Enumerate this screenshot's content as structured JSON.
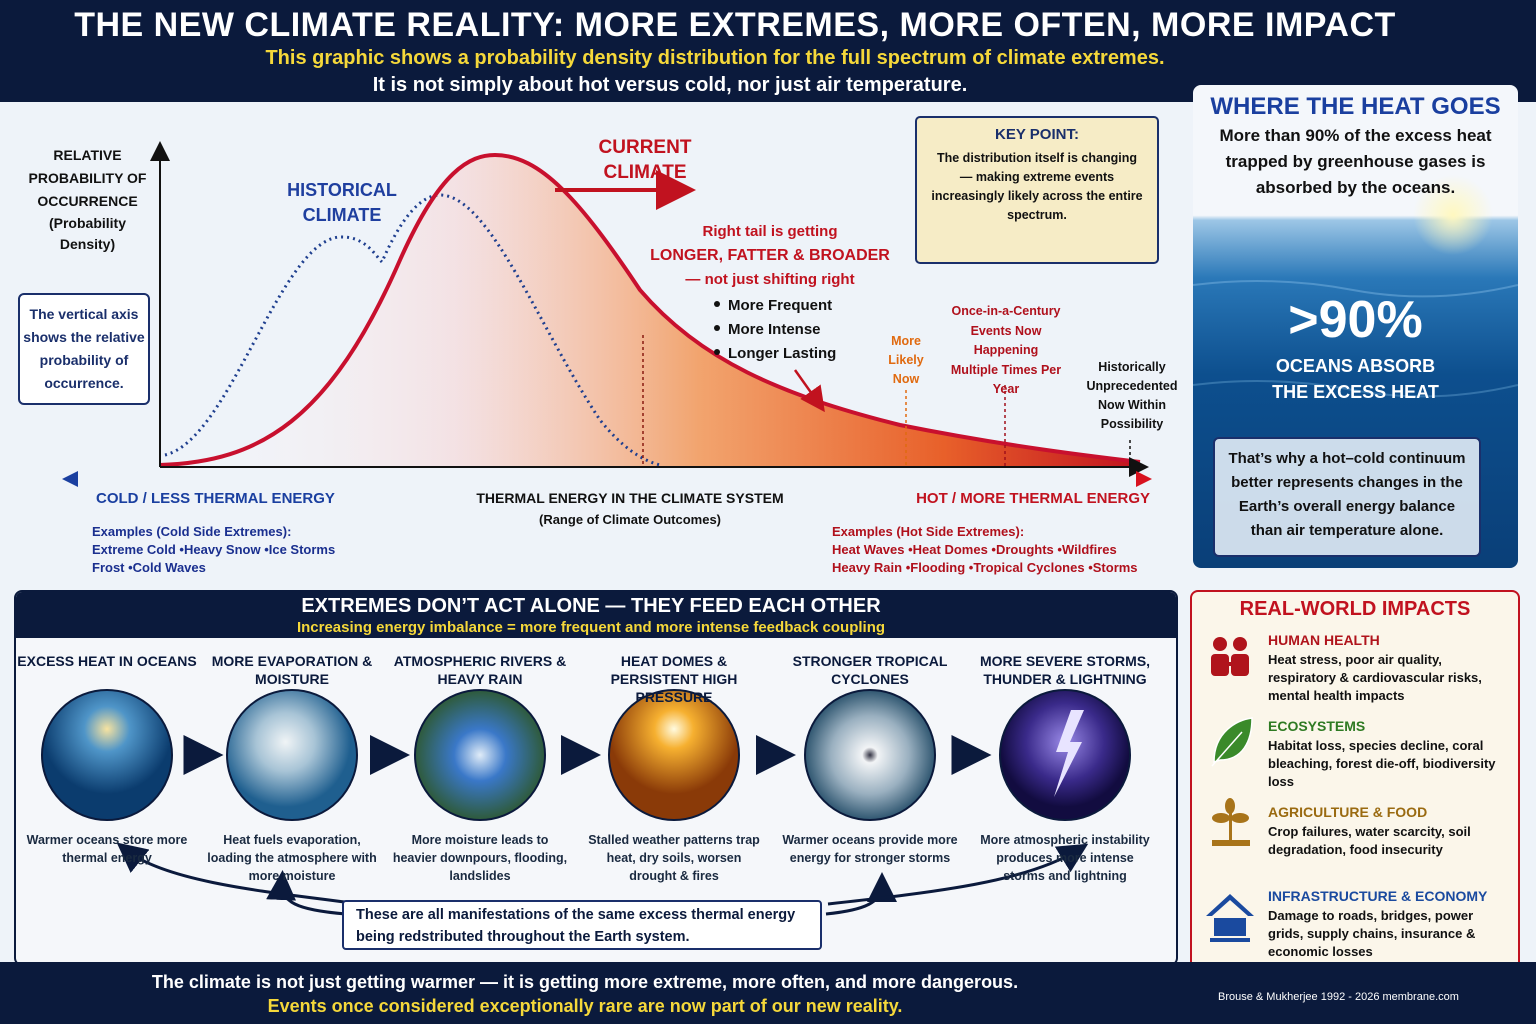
{
  "header": {
    "title": "THE NEW CLIMATE REALITY:  MORE EXTREMES, MORE OFTEN, MORE IMPACT",
    "subtitle": "This graphic shows a probability density distribution for the full spectrum of climate extremes.",
    "note": "It is not simply about hot versus cold, nor just air temperature."
  },
  "distribution": {
    "y_axis_label": "RELATIVE PROBABILITY OF OCCURRENCE",
    "y_axis_note": "(Probability Density)",
    "axis_note": "The vertical axis shows the relative probability of occurrence.",
    "historical_label": "HISTORICAL CLIMATE",
    "current_label": "CURRENT CLIMATE",
    "key_point": {
      "title": "KEY POINT:",
      "text": "The distribution itself is changing — making extreme events increasingly likely across the entire spectrum."
    },
    "tail_note": {
      "line1": "Right tail is getting",
      "line2": "LONGER, FATTER & BROADER",
      "line3": "— not just shifting right",
      "bullets": [
        "More Frequent",
        "More Intense",
        "Longer Lasting"
      ]
    },
    "markers": [
      "More Likely Now",
      "Once-in-a-Century Events Now Happening Multiple Times Per Year",
      "Historically Unprecedented Now Within Possibility"
    ],
    "x_axis": {
      "cold": "COLD / LESS THERMAL ENERGY",
      "title": "THERMAL ENERGY IN THE CLIMATE SYSTEM",
      "subtitle": "(Range of Climate Outcomes)",
      "hot": "HOT / MORE THERMAL ENERGY"
    },
    "cold_examples": {
      "title": "Examples (Cold Side Extremes):",
      "line1": [
        "Extreme Cold",
        "Heavy Snow",
        "Ice Storms"
      ],
      "line2": [
        "Frost",
        "Cold Waves"
      ]
    },
    "hot_examples": {
      "title": "Examples (Hot Side Extremes):",
      "line1": [
        "Heat Waves",
        "Heat Domes",
        "Droughts",
        "Wildfires"
      ],
      "line2": [
        "Heavy Rain",
        "Flooding",
        "Tropical Cyclones",
        "Storms"
      ]
    }
  },
  "heat": {
    "title": "WHERE THE HEAT GOES",
    "text": "More than 90% of the excess heat trapped by greenhouse gases is absorbed by the oceans.",
    "stat": ">90%",
    "stat_label": "OCEANS ABSORB THE EXCESS HEAT",
    "note": "That’s why a hot–cold continuum better represents changes in the Earth’s overall energy balance than air temperature alone."
  },
  "feedback": {
    "title": "EXTREMES DON’T ACT ALONE — THEY FEED EACH OTHER",
    "subtitle": "Increasing energy imbalance = more frequent and more intense feedback coupling",
    "steps": [
      {
        "title": "EXCESS HEAT IN OCEANS",
        "text": "Warmer oceans store more thermal energy"
      },
      {
        "title": "MORE EVAPORATION & MOISTURE",
        "text": "Heat fuels evaporation, loading the atmosphere with more moisture"
      },
      {
        "title": "ATMOSPHERIC RIVERS & HEAVY RAIN",
        "text": "More moisture leads to heavier downpours, flooding, landslides"
      },
      {
        "title": "HEAT DOMES & PERSISTENT HIGH PRESSURE",
        "text": "Stalled weather patterns trap heat, dry soils, worsen drought & fires"
      },
      {
        "title": "STRONGER TROPICAL CYCLONES",
        "text": "Warmer oceans provide more energy for stronger storms"
      },
      {
        "title": "MORE SEVERE STORMS, THUNDER & LIGHTNING",
        "text": "More atmospheric instability produces more intense storms and lightning"
      }
    ],
    "note": "These are all manifestations of the same excess thermal energy being redstributed throughout the Earth system."
  },
  "impacts": {
    "title": "REAL-WORLD IMPACTS",
    "items": [
      {
        "title": "HUMAN HEALTH",
        "text": "Heat stress, poor air quality, respiratory & cardiovascular risks, mental health impacts"
      },
      {
        "title": "ECOSYSTEMS",
        "text": "Habitat loss, species decline, coral bleaching, forest die-off, biodiversity loss"
      },
      {
        "title": "AGRICULTURE & FOOD",
        "text": "Crop failures, water scarcity, soil degradation, food insecurity"
      },
      {
        "title": "INFRASTRUCTURE & ECONOMY",
        "text": "Damage to roads, bridges, power grids, supply chains, insurance & economic losses"
      }
    ]
  },
  "footer": {
    "line1": "The climate is not just getting warmer — it is getting more extreme, more often, and more dangerous.",
    "line2": "Events once considered exceptionally rare are now part of our new reality.",
    "credit": "Brouse & Mukherjee 1992 - 2026 membrane.com"
  }
}
